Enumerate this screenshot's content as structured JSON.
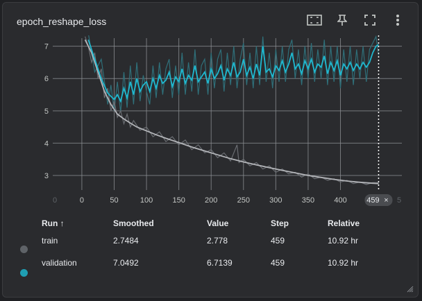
{
  "card": {
    "title": "epoch_reshape_loss"
  },
  "toolbar": {
    "icons": [
      "fit-domain-icon",
      "pin-icon",
      "fullscreen-icon",
      "more-vert-icon"
    ]
  },
  "colors": {
    "train": "#b3b5b9",
    "validation": "#1fb8cf",
    "train_raw": "#6a6d72",
    "validation_raw": "#2f6f79"
  },
  "chart_data": {
    "type": "line",
    "xlim": [
      -45,
      495
    ],
    "ylim": [
      2.55,
      7.25
    ],
    "yticks": [
      3,
      4,
      5,
      6,
      7
    ],
    "xticks": [
      0,
      50,
      100,
      150,
      200,
      250,
      300,
      350,
      400
    ],
    "xtick_ghost_left": "0",
    "xtick_ghost_right": "5",
    "cursor": {
      "step": 459,
      "label": "459",
      "close": "×"
    },
    "grid": true,
    "series": [
      {
        "name": "train",
        "smoothed_points": [
          [
            5,
            7.2
          ],
          [
            15,
            6.8
          ],
          [
            25,
            6.2
          ],
          [
            35,
            5.6
          ],
          [
            45,
            5.2
          ],
          [
            55,
            4.9
          ],
          [
            65,
            4.75
          ],
          [
            75,
            4.62
          ],
          [
            85,
            4.5
          ],
          [
            100,
            4.38
          ],
          [
            115,
            4.26
          ],
          [
            130,
            4.15
          ],
          [
            150,
            4.02
          ],
          [
            170,
            3.88
          ],
          [
            190,
            3.76
          ],
          [
            210,
            3.64
          ],
          [
            230,
            3.52
          ],
          [
            250,
            3.42
          ],
          [
            270,
            3.33
          ],
          [
            290,
            3.24
          ],
          [
            310,
            3.16
          ],
          [
            330,
            3.08
          ],
          [
            350,
            3.0
          ],
          [
            370,
            2.94
          ],
          [
            390,
            2.88
          ],
          [
            410,
            2.83
          ],
          [
            430,
            2.79
          ],
          [
            450,
            2.76
          ],
          [
            459,
            2.75
          ]
        ],
        "raw_points": [
          [
            5,
            7.3
          ],
          [
            10,
            7.0
          ],
          [
            15,
            6.5
          ],
          [
            20,
            6.8
          ],
          [
            25,
            6.0
          ],
          [
            30,
            6.3
          ],
          [
            35,
            5.4
          ],
          [
            40,
            5.7
          ],
          [
            45,
            5.0
          ],
          [
            50,
            5.3
          ],
          [
            55,
            4.8
          ],
          [
            60,
            5.0
          ],
          [
            65,
            4.6
          ],
          [
            70,
            4.9
          ],
          [
            75,
            4.5
          ],
          [
            80,
            4.7
          ],
          [
            90,
            4.4
          ],
          [
            100,
            4.5
          ],
          [
            110,
            4.2
          ],
          [
            120,
            4.35
          ],
          [
            130,
            4.05
          ],
          [
            140,
            4.2
          ],
          [
            150,
            3.95
          ],
          [
            160,
            4.1
          ],
          [
            170,
            3.8
          ],
          [
            180,
            3.95
          ],
          [
            190,
            3.7
          ],
          [
            200,
            3.8
          ],
          [
            210,
            3.55
          ],
          [
            220,
            3.7
          ],
          [
            230,
            3.45
          ],
          [
            240,
            3.95
          ],
          [
            243,
            3.4
          ],
          [
            250,
            3.5
          ],
          [
            260,
            3.3
          ],
          [
            270,
            3.4
          ],
          [
            280,
            3.2
          ],
          [
            290,
            3.3
          ],
          [
            300,
            3.1
          ],
          [
            310,
            3.2
          ],
          [
            320,
            3.05
          ],
          [
            330,
            3.1
          ],
          [
            340,
            2.95
          ],
          [
            350,
            3.05
          ],
          [
            360,
            2.9
          ],
          [
            370,
            2.95
          ],
          [
            380,
            2.85
          ],
          [
            390,
            2.9
          ],
          [
            400,
            2.8
          ],
          [
            410,
            2.85
          ],
          [
            420,
            2.75
          ],
          [
            430,
            2.8
          ],
          [
            440,
            2.72
          ],
          [
            450,
            2.78
          ],
          [
            459,
            2.778
          ]
        ]
      },
      {
        "name": "validation",
        "smoothed_points": [
          [
            10,
            7.2
          ],
          [
            20,
            6.6
          ],
          [
            30,
            6.0
          ],
          [
            40,
            5.55
          ],
          [
            50,
            5.35
          ],
          [
            55,
            5.5
          ],
          [
            60,
            5.3
          ],
          [
            65,
            5.7
          ],
          [
            70,
            5.4
          ],
          [
            75,
            5.9
          ],
          [
            80,
            5.5
          ],
          [
            85,
            6.0
          ],
          [
            90,
            5.6
          ],
          [
            95,
            5.8
          ],
          [
            100,
            5.9
          ],
          [
            105,
            5.6
          ],
          [
            110,
            6.0
          ],
          [
            115,
            5.7
          ],
          [
            120,
            6.1
          ],
          [
            125,
            5.85
          ],
          [
            130,
            5.95
          ],
          [
            135,
            6.2
          ],
          [
            140,
            5.75
          ],
          [
            145,
            6.05
          ],
          [
            150,
            5.9
          ],
          [
            155,
            6.3
          ],
          [
            160,
            5.85
          ],
          [
            165,
            6.1
          ],
          [
            170,
            5.95
          ],
          [
            175,
            6.4
          ],
          [
            180,
            5.9
          ],
          [
            185,
            6.05
          ],
          [
            190,
            6.2
          ],
          [
            195,
            5.85
          ],
          [
            200,
            6.3
          ],
          [
            205,
            6.0
          ],
          [
            210,
            6.15
          ],
          [
            215,
            6.4
          ],
          [
            220,
            5.95
          ],
          [
            225,
            6.3
          ],
          [
            230,
            6.1
          ],
          [
            235,
            6.5
          ],
          [
            240,
            6.05
          ],
          [
            245,
            6.2
          ],
          [
            250,
            6.6
          ],
          [
            255,
            6.1
          ],
          [
            260,
            6.35
          ],
          [
            265,
            6.0
          ],
          [
            270,
            6.45
          ],
          [
            275,
            6.1
          ],
          [
            280,
            7.0
          ],
          [
            285,
            6.2
          ],
          [
            290,
            6.3
          ],
          [
            295,
            6.05
          ],
          [
            300,
            6.4
          ],
          [
            305,
            6.25
          ],
          [
            310,
            6.55
          ],
          [
            315,
            6.2
          ],
          [
            320,
            6.45
          ],
          [
            325,
            6.8
          ],
          [
            330,
            6.3
          ],
          [
            335,
            6.45
          ],
          [
            340,
            6.15
          ],
          [
            345,
            6.55
          ],
          [
            350,
            6.3
          ],
          [
            355,
            6.6
          ],
          [
            360,
            6.2
          ],
          [
            365,
            6.45
          ],
          [
            370,
            6.35
          ],
          [
            375,
            6.7
          ],
          [
            380,
            6.15
          ],
          [
            385,
            6.5
          ],
          [
            390,
            6.25
          ],
          [
            395,
            6.55
          ],
          [
            400,
            6.1
          ],
          [
            405,
            6.45
          ],
          [
            410,
            6.3
          ],
          [
            415,
            6.5
          ],
          [
            420,
            6.25
          ],
          [
            425,
            6.45
          ],
          [
            430,
            6.3
          ],
          [
            435,
            6.5
          ],
          [
            440,
            6.35
          ],
          [
            445,
            6.5
          ],
          [
            450,
            6.8
          ],
          [
            455,
            7.0
          ],
          [
            459,
            7.049
          ]
        ],
        "raw_points": [
          [
            10,
            7.4
          ],
          [
            20,
            6.2
          ],
          [
            30,
            6.6
          ],
          [
            40,
            5.2
          ],
          [
            45,
            5.8
          ],
          [
            50,
            5.0
          ],
          [
            55,
            5.9
          ],
          [
            60,
            4.95
          ],
          [
            65,
            6.2
          ],
          [
            70,
            5.1
          ],
          [
            75,
            6.4
          ],
          [
            80,
            5.2
          ],
          [
            85,
            6.5
          ],
          [
            90,
            5.3
          ],
          [
            95,
            6.1
          ],
          [
            100,
            5.6
          ],
          [
            105,
            5.2
          ],
          [
            110,
            6.4
          ],
          [
            115,
            5.4
          ],
          [
            120,
            6.5
          ],
          [
            125,
            5.5
          ],
          [
            130,
            6.3
          ],
          [
            135,
            6.6
          ],
          [
            140,
            5.4
          ],
          [
            145,
            6.4
          ],
          [
            150,
            5.5
          ],
          [
            155,
            6.8
          ],
          [
            160,
            5.5
          ],
          [
            165,
            6.5
          ],
          [
            170,
            5.6
          ],
          [
            175,
            6.9
          ],
          [
            180,
            5.5
          ],
          [
            185,
            6.4
          ],
          [
            190,
            6.6
          ],
          [
            195,
            5.5
          ],
          [
            200,
            6.8
          ],
          [
            205,
            5.7
          ],
          [
            210,
            6.6
          ],
          [
            215,
            6.9
          ],
          [
            220,
            5.6
          ],
          [
            225,
            6.8
          ],
          [
            230,
            5.8
          ],
          [
            235,
            7.0
          ],
          [
            240,
            5.7
          ],
          [
            245,
            6.6
          ],
          [
            250,
            7.1
          ],
          [
            255,
            5.8
          ],
          [
            260,
            6.8
          ],
          [
            265,
            5.7
          ],
          [
            270,
            7.0
          ],
          [
            275,
            5.8
          ],
          [
            280,
            7.3
          ],
          [
            285,
            5.9
          ],
          [
            290,
            6.8
          ],
          [
            295,
            5.7
          ],
          [
            300,
            6.9
          ],
          [
            305,
            5.9
          ],
          [
            310,
            7.0
          ],
          [
            315,
            5.9
          ],
          [
            320,
            6.9
          ],
          [
            325,
            7.2
          ],
          [
            330,
            6.0
          ],
          [
            335,
            6.9
          ],
          [
            340,
            5.8
          ],
          [
            345,
            7.0
          ],
          [
            350,
            6.0
          ],
          [
            355,
            7.1
          ],
          [
            360,
            5.9
          ],
          [
            365,
            6.9
          ],
          [
            370,
            6.0
          ],
          [
            375,
            7.2
          ],
          [
            380,
            5.8
          ],
          [
            385,
            7.0
          ],
          [
            390,
            5.9
          ],
          [
            395,
            7.0
          ],
          [
            400,
            5.7
          ],
          [
            405,
            6.9
          ],
          [
            410,
            5.9
          ],
          [
            415,
            7.0
          ],
          [
            420,
            5.8
          ],
          [
            425,
            6.9
          ],
          [
            430,
            6.0
          ],
          [
            435,
            7.0
          ],
          [
            440,
            5.9
          ],
          [
            445,
            6.9
          ],
          [
            450,
            7.1
          ],
          [
            455,
            7.3
          ],
          [
            459,
            6.714
          ]
        ]
      }
    ]
  },
  "table": {
    "headers": {
      "run": "Run ↑",
      "smoothed": "Smoothed",
      "value": "Value",
      "step": "Step",
      "relative": "Relative"
    },
    "rows": [
      {
        "name": "train",
        "smoothed": "2.7484",
        "value": "2.778",
        "step": "459",
        "relative": "10.92 hr",
        "color": "#5f6368"
      },
      {
        "name": "validation",
        "smoothed": "7.0492",
        "value": "6.7139",
        "step": "459",
        "relative": "10.92 hr",
        "color": "#1f9fb3"
      }
    ]
  }
}
